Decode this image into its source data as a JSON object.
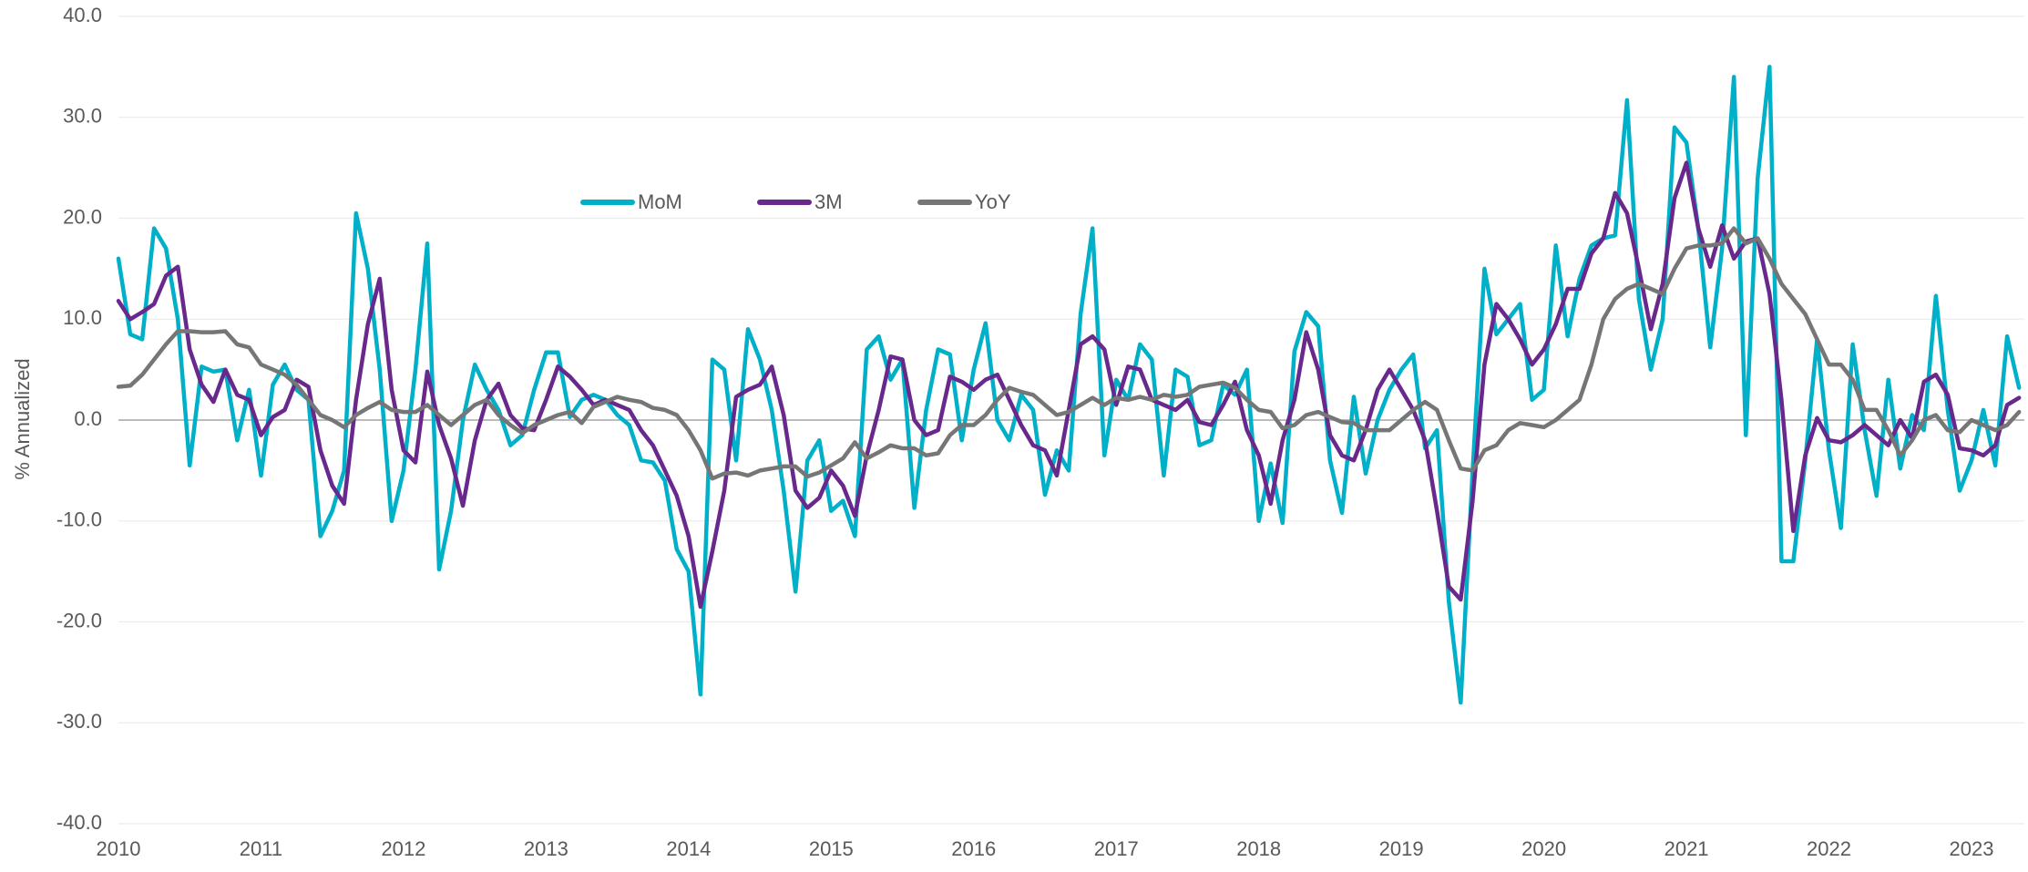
{
  "chart_data": {
    "type": "line",
    "y_label": "% Annualized",
    "categories": [
      "2010",
      null,
      null,
      null,
      null,
      null,
      null,
      null,
      null,
      null,
      null,
      null,
      "2011",
      null,
      null,
      null,
      null,
      null,
      null,
      null,
      null,
      null,
      null,
      null,
      "2012",
      null,
      null,
      null,
      null,
      null,
      null,
      null,
      null,
      null,
      null,
      null,
      "2013",
      null,
      null,
      null,
      null,
      null,
      null,
      null,
      null,
      null,
      null,
      null,
      "2014",
      null,
      null,
      null,
      null,
      null,
      null,
      null,
      null,
      null,
      null,
      null,
      "2015",
      null,
      null,
      null,
      null,
      null,
      null,
      null,
      null,
      null,
      null,
      null,
      "2016",
      null,
      null,
      null,
      null,
      null,
      null,
      null,
      null,
      null,
      null,
      null,
      "2017",
      null,
      null,
      null,
      null,
      null,
      null,
      null,
      null,
      null,
      null,
      null,
      "2018",
      null,
      null,
      null,
      null,
      null,
      null,
      null,
      null,
      null,
      null,
      null,
      "2019",
      null,
      null,
      null,
      null,
      null,
      null,
      null,
      null,
      null,
      null,
      null,
      "2020",
      null,
      null,
      null,
      null,
      null,
      null,
      null,
      null,
      null,
      null,
      null,
      "2021",
      null,
      null,
      null,
      null,
      null,
      null,
      null,
      null,
      null,
      null,
      null,
      "2022",
      null,
      null,
      null,
      null,
      null,
      null,
      null,
      null,
      null,
      null,
      null,
      "2023",
      null,
      null,
      null,
      null
    ],
    "series": [
      {
        "name": "MoM",
        "color": "#00b0c8",
        "values": [
          16,
          8.5,
          8,
          19,
          17,
          10,
          -4.5,
          5.3,
          4.8,
          5,
          -2,
          3,
          -5.5,
          3.5,
          5.5,
          3,
          2,
          -11.5,
          -9,
          -5,
          20.5,
          15,
          5,
          -10,
          -5,
          5,
          17.5,
          -14.8,
          -9,
          0,
          5.5,
          3,
          1,
          -2.5,
          -1.5,
          3,
          6.7,
          6.7,
          0.3,
          2,
          2.5,
          2,
          0.5,
          -0.5,
          -4,
          -4.2,
          -6,
          -12.8,
          -15,
          -27.2,
          6,
          5,
          -4,
          9,
          6,
          1,
          -7,
          -17,
          -4,
          -2,
          -9,
          -8,
          -11.5,
          7,
          8.3,
          4,
          6,
          -8.7,
          1,
          7,
          6.5,
          -2,
          5,
          9.6,
          0,
          -2,
          2.5,
          1,
          -7.4,
          -3,
          -5,
          10.5,
          19,
          -3.5,
          4,
          2,
          7.5,
          6,
          -5.5,
          5,
          4.3,
          -2.5,
          -2,
          3.5,
          2.5,
          5,
          -10,
          -4.3,
          -10.2,
          6.8,
          10.7,
          9.3,
          -4,
          -9.2,
          2.3,
          -5.3,
          0,
          3,
          5,
          6.5,
          -2.8,
          -1,
          -18,
          -28,
          -5,
          15,
          8.5,
          10,
          11.5,
          2,
          3,
          17.3,
          8.3,
          14,
          17.3,
          18,
          18.3,
          31.7,
          12,
          5,
          10,
          29,
          27.5,
          19,
          7.2,
          17,
          34,
          -1.5,
          24,
          35,
          -14,
          -14,
          -4,
          8,
          -3,
          -10.7,
          7.5,
          -1,
          -7.5,
          4,
          -4.8,
          0.5,
          -1,
          12.3,
          1,
          -7,
          -4,
          1,
          -4.5,
          8.3,
          3.2
        ]
      },
      {
        "name": "3M",
        "color": "#68288c",
        "values": [
          11.8,
          10,
          10.7,
          11.5,
          14.3,
          15.2,
          7,
          3.5,
          1.8,
          5,
          2.5,
          2,
          -1.5,
          0.3,
          1,
          4,
          3.3,
          -3,
          -6.5,
          -8.3,
          2,
          9.5,
          14,
          3,
          -3,
          -4.2,
          4.8,
          -0.5,
          -3.8,
          -8.5,
          -2,
          2,
          3.6,
          0.5,
          -0.8,
          -1,
          2,
          5.3,
          4.3,
          3,
          1.5,
          2,
          1.5,
          1,
          -1,
          -2.5,
          -5,
          -7.5,
          -11.5,
          -18.5,
          -13,
          -7,
          2.3,
          3,
          3.5,
          5.3,
          0.5,
          -7,
          -8.7,
          -7.7,
          -5,
          -6.5,
          -9.5,
          -3.5,
          1,
          6.3,
          6,
          0,
          -1.5,
          -1,
          4.3,
          3.8,
          3,
          4,
          4.5,
          2,
          -0.5,
          -2.5,
          -3,
          -5.5,
          1,
          7.5,
          8.3,
          7,
          1.5,
          5.3,
          5,
          2,
          1.5,
          1,
          2,
          -0.2,
          -0.5,
          1.5,
          3.8,
          -1,
          -3.5,
          -8.3,
          -2,
          2,
          8.7,
          5,
          -1.5,
          -3.5,
          -4,
          -1,
          3,
          5,
          3,
          1,
          -2,
          -9,
          -16.5,
          -17.8,
          -8,
          5.5,
          11.5,
          10,
          8,
          5.5,
          7,
          9.5,
          13,
          13,
          16.5,
          18,
          22.5,
          20.5,
          15,
          9,
          13.5,
          22,
          25.5,
          19,
          15.2,
          19.3,
          16,
          17.7,
          18,
          12.5,
          2,
          -11,
          -3.5,
          0.2,
          -2,
          -2.2,
          -1.5,
          -0.5,
          -1.5,
          -2.5,
          0,
          -1.8,
          3.8,
          4.5,
          2.5,
          -2.8,
          -3,
          -3.5,
          -2.5,
          1.5,
          2.2
        ]
      },
      {
        "name": "YoY",
        "color": "#767676",
        "values": [
          3.3,
          3.4,
          4.5,
          6,
          7.5,
          8.8,
          8.8,
          8.7,
          8.7,
          8.8,
          7.5,
          7.2,
          5.5,
          5,
          4.5,
          3.5,
          2,
          0.5,
          0,
          -0.7,
          0.5,
          1.2,
          1.8,
          1,
          0.8,
          0.8,
          1.5,
          0.5,
          -0.5,
          0.5,
          1.5,
          2,
          0.5,
          -0.5,
          -1.3,
          -0.5,
          0,
          0.5,
          0.8,
          -0.3,
          1.3,
          1.8,
          2.3,
          2,
          1.8,
          1.2,
          1,
          0.5,
          -1,
          -3,
          -5.8,
          -5.3,
          -5.2,
          -5.5,
          -5,
          -4.8,
          -4.6,
          -4.6,
          -5.6,
          -5.2,
          -4.5,
          -3.8,
          -2.2,
          -3.8,
          -3.2,
          -2.5,
          -2.8,
          -2.8,
          -3.5,
          -3.3,
          -1.5,
          -0.5,
          -0.5,
          0.5,
          2,
          3.2,
          2.8,
          2.5,
          1.5,
          0.5,
          0.8,
          1.5,
          2.2,
          1.5,
          2.2,
          2,
          2.3,
          2,
          2.5,
          2.3,
          2.5,
          3.3,
          3.5,
          3.7,
          3.2,
          2,
          1,
          0.8,
          -0.8,
          -0.5,
          0.5,
          0.8,
          0.3,
          -0.2,
          -0.3,
          -1,
          -1,
          -1,
          0,
          1,
          1.8,
          1,
          -2,
          -4.8,
          -5,
          -3,
          -2.5,
          -1,
          -0.3,
          -0.5,
          -0.7,
          0,
          1,
          2,
          5.5,
          10,
          12,
          13,
          13.5,
          13,
          12.5,
          15,
          17,
          17.3,
          17.3,
          17.5,
          19,
          17.5,
          18,
          16,
          13.5,
          12,
          10.5,
          8,
          5.5,
          5.5,
          4,
          1,
          1,
          -1,
          -3.5,
          -2,
          0,
          0.5,
          -1,
          -1.2,
          0,
          -0.5,
          -1,
          -0.5,
          0.8
        ]
      }
    ],
    "ylim": [
      -40,
      40
    ],
    "yticks": [
      {
        "value": -40,
        "label": "-40.0"
      },
      {
        "value": -30,
        "label": "-30.0"
      },
      {
        "value": -20,
        "label": "-20.0"
      },
      {
        "value": -10,
        "label": "-10.0"
      },
      {
        "value": 0,
        "label": "0.0"
      },
      {
        "value": 10,
        "label": "10.0"
      },
      {
        "value": 20,
        "label": "20.0"
      },
      {
        "value": 30,
        "label": "30.0"
      },
      {
        "value": 40,
        "label": "40.0"
      }
    ],
    "grid": true
  }
}
